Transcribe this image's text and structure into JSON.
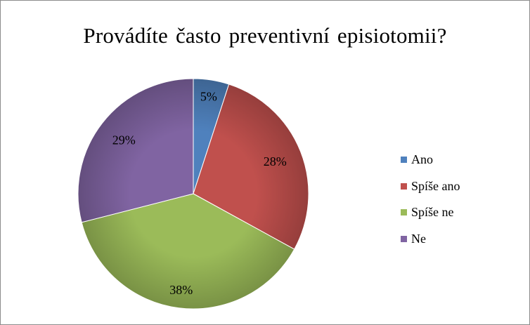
{
  "chart_data": {
    "type": "pie",
    "title": "Provádíte často preventivní episiotomii?",
    "categories": [
      "Ano",
      "Spíše ano",
      "Spíše ne",
      "Ne"
    ],
    "values": [
      5,
      28,
      38,
      29
    ],
    "labels": [
      "5%",
      "28%",
      "38%",
      "29%"
    ],
    "colors": [
      "#4F81BD",
      "#C0504D",
      "#9BBB59",
      "#8064A2"
    ],
    "legend": "right"
  }
}
